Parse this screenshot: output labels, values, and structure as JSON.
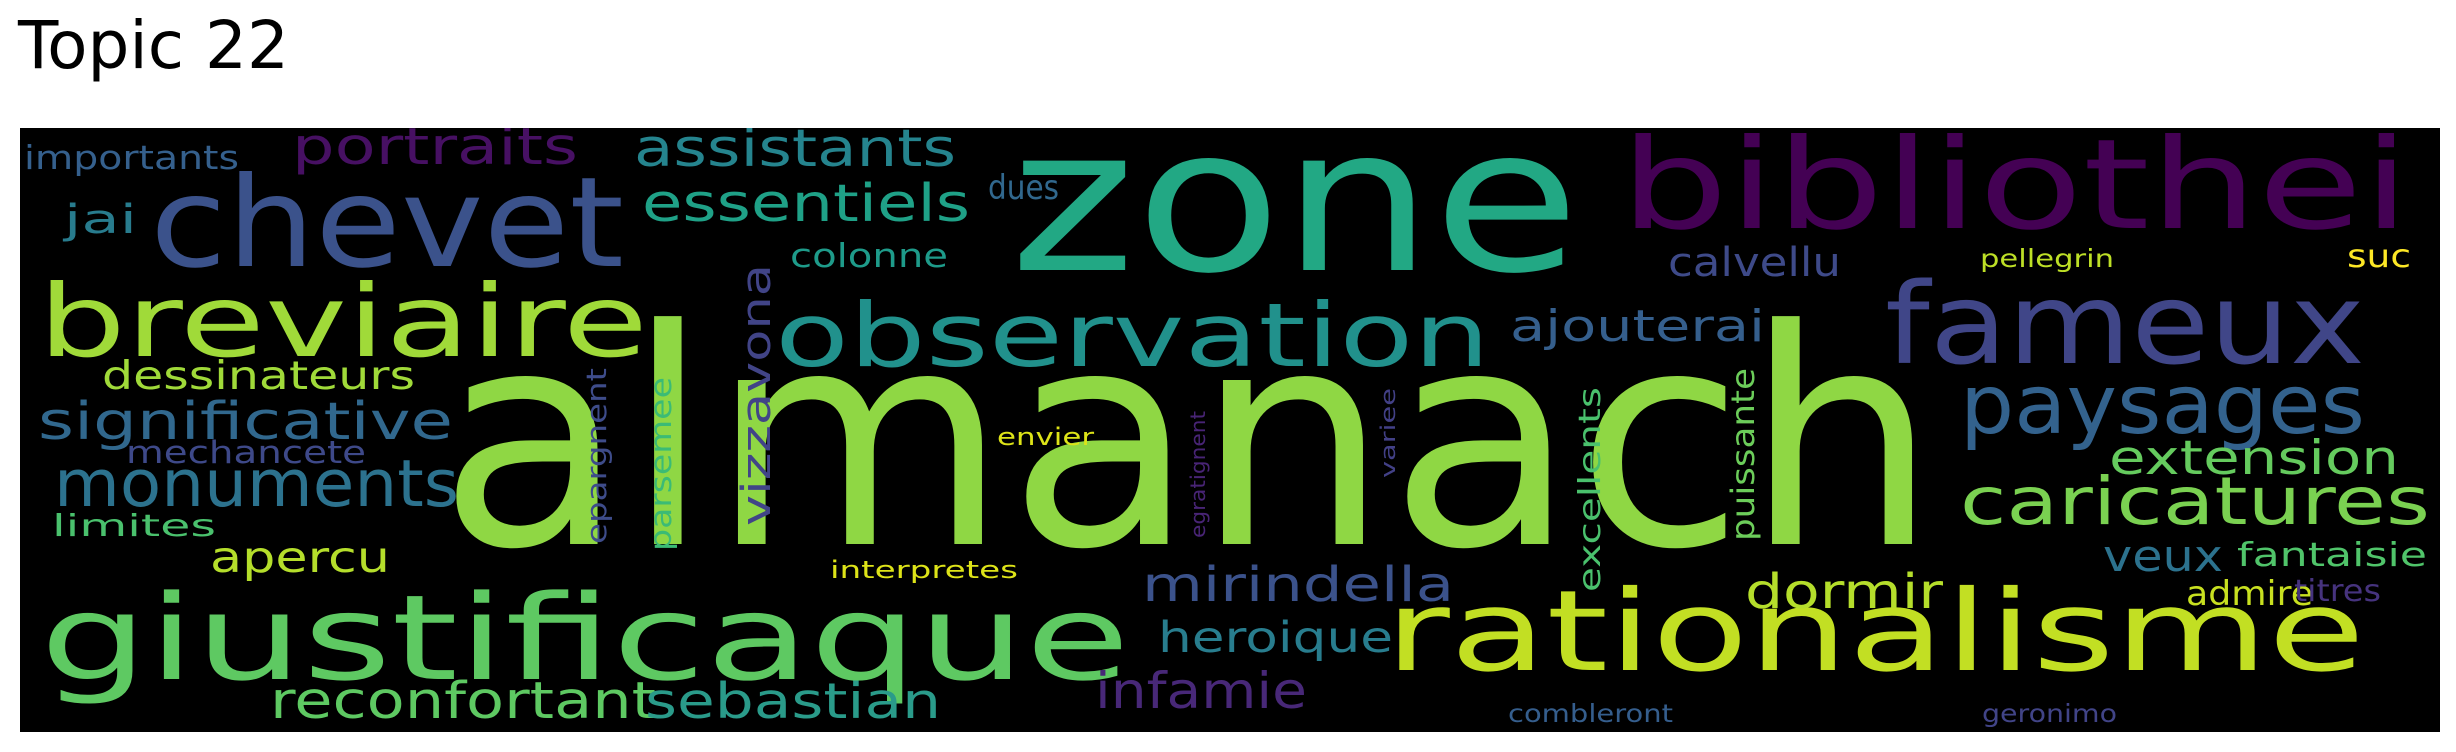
{
  "title": "Topic 22",
  "words": [
    {
      "text": "almanach",
      "color": "#8fd744"
    },
    {
      "text": "zone",
      "color": "#22a884"
    },
    {
      "text": "bibliothei",
      "color": "#440154"
    },
    {
      "text": "chevet",
      "color": "#3b528b"
    },
    {
      "text": "giustificaque",
      "color": "#5ec962"
    },
    {
      "text": "rationalisme",
      "color": "#c2df23"
    },
    {
      "text": "breviaire",
      "color": "#a0da39"
    },
    {
      "text": "observation",
      "color": "#21918c"
    },
    {
      "text": "fameux",
      "color": "#404688"
    },
    {
      "text": "paysages",
      "color": "#33628d"
    },
    {
      "text": "caricatures",
      "color": "#7ad151"
    },
    {
      "text": "monuments",
      "color": "#2c728e"
    },
    {
      "text": "significative",
      "color": "#31688e"
    },
    {
      "text": "reconfortant",
      "color": "#5ec962"
    },
    {
      "text": "sebastian",
      "color": "#2a9b8a"
    },
    {
      "text": "mirindella",
      "color": "#3b528b"
    },
    {
      "text": "assistants",
      "color": "#25848e"
    },
    {
      "text": "essentiels",
      "color": "#1fa187"
    },
    {
      "text": "portraits",
      "color": "#471063"
    },
    {
      "text": "infamie",
      "color": "#482878"
    },
    {
      "text": "dormir",
      "color": "#b5de2b"
    },
    {
      "text": "extension",
      "color": "#65cb5e"
    },
    {
      "text": "heroique",
      "color": "#287d8e"
    },
    {
      "text": "ajouterai",
      "color": "#355f8d"
    },
    {
      "text": "vizzavona",
      "color": "#414487"
    },
    {
      "text": "dessinateurs",
      "color": "#a0da39"
    },
    {
      "text": "apercu",
      "color": "#b5de2b"
    },
    {
      "text": "veux",
      "color": "#2c728e"
    },
    {
      "text": "calvellu",
      "color": "#3e4a89"
    },
    {
      "text": "parsemee",
      "color": "#3bbb75"
    },
    {
      "text": "excellents",
      "color": "#4ac16d"
    },
    {
      "text": "puissante",
      "color": "#6ccd5a"
    },
    {
      "text": "epargnent",
      "color": "#3e4c8a"
    },
    {
      "text": "fantaisie",
      "color": "#50c46a"
    },
    {
      "text": "admire",
      "color": "#c8e020"
    },
    {
      "text": "mechancete",
      "color": "#3e4989"
    },
    {
      "text": "jai",
      "color": "#287c8e"
    },
    {
      "text": "colonne",
      "color": "#1e9b8a"
    },
    {
      "text": "importants",
      "color": "#35608d"
    },
    {
      "text": "limites",
      "color": "#4ac16d"
    },
    {
      "text": "dues",
      "color": "#31688e"
    },
    {
      "text": "titres",
      "color": "#46337e"
    },
    {
      "text": "suc",
      "color": "#fde725"
    },
    {
      "text": "envier",
      "color": "#dde318"
    },
    {
      "text": "interpretes",
      "color": "#dde318"
    },
    {
      "text": "pellegrin",
      "color": "#bddf26"
    },
    {
      "text": "egratignent",
      "color": "#482475"
    },
    {
      "text": "variee",
      "color": "#424086"
    },
    {
      "text": "combleront",
      "color": "#355e8d"
    },
    {
      "text": "geronimo",
      "color": "#414487"
    }
  ]
}
